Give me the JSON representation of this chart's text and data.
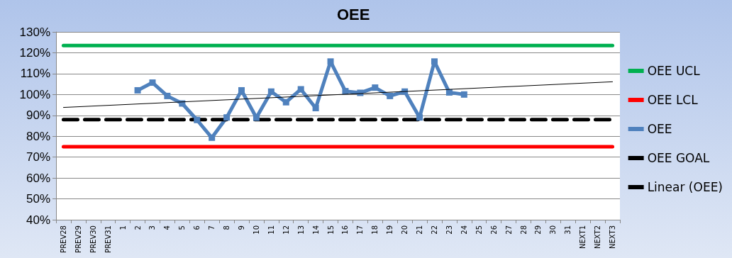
{
  "chart_data": {
    "type": "line",
    "title": "OEE",
    "categories": [
      "PREV28",
      "PREV29",
      "PREV30",
      "PREV31",
      "1",
      "2",
      "3",
      "4",
      "5",
      "6",
      "7",
      "8",
      "9",
      "10",
      "11",
      "12",
      "13",
      "14",
      "15",
      "16",
      "17",
      "18",
      "19",
      "20",
      "21",
      "22",
      "23",
      "24",
      "25",
      "26",
      "27",
      "28",
      "29",
      "30",
      "31",
      "NEXT1",
      "NEXT2",
      "NEXT3"
    ],
    "series": [
      {
        "name": "OEE UCL",
        "color": "#00b050",
        "x": [
          "PREV28",
          "NEXT3"
        ],
        "values": [
          123.5,
          123.5
        ],
        "marker": "none",
        "line_style": "solid"
      },
      {
        "name": "OEE LCL",
        "color": "#ff0000",
        "x": [
          "PREV28",
          "NEXT3"
        ],
        "values": [
          75,
          75
        ],
        "marker": "none",
        "line_style": "solid"
      },
      {
        "name": "OEE",
        "color": "#4f81bd",
        "values": [
          null,
          null,
          null,
          null,
          null,
          102,
          105.7,
          99.3,
          95.7,
          87.8,
          79.3,
          89,
          102,
          88.9,
          101.4,
          96.3,
          102.5,
          93.5,
          115.8,
          101.6,
          100.8,
          103.3,
          99.3,
          101.4,
          89,
          115.8,
          101,
          100,
          null,
          null,
          null,
          null,
          null,
          null,
          null,
          null,
          null,
          null
        ],
        "marker": "square",
        "line_style": "solid"
      },
      {
        "name": "OEE GOAL",
        "color": "#000000",
        "x": [
          "PREV28",
          "NEXT3"
        ],
        "values": [
          88,
          88
        ],
        "marker": "none",
        "line_style": "dashed"
      },
      {
        "name": "Linear (OEE)",
        "color": "#000000",
        "x": [
          "PREV28",
          "NEXT3"
        ],
        "values": [
          93.8,
          106.1
        ],
        "marker": "none",
        "line_style": "solid"
      }
    ],
    "ylim": [
      40,
      130
    ],
    "yticks": [
      {
        "value": 40,
        "label": "40%"
      },
      {
        "value": 50,
        "label": "50%"
      },
      {
        "value": 60,
        "label": "60%"
      },
      {
        "value": 70,
        "label": "70%"
      },
      {
        "value": 80,
        "label": "80%"
      },
      {
        "value": 90,
        "label": "90%"
      },
      {
        "value": 100,
        "label": "100%"
      },
      {
        "value": 110,
        "label": "110%"
      },
      {
        "value": 120,
        "label": "120%"
      },
      {
        "value": 130,
        "label": "130%"
      }
    ],
    "grid": "y",
    "legend": "right"
  }
}
